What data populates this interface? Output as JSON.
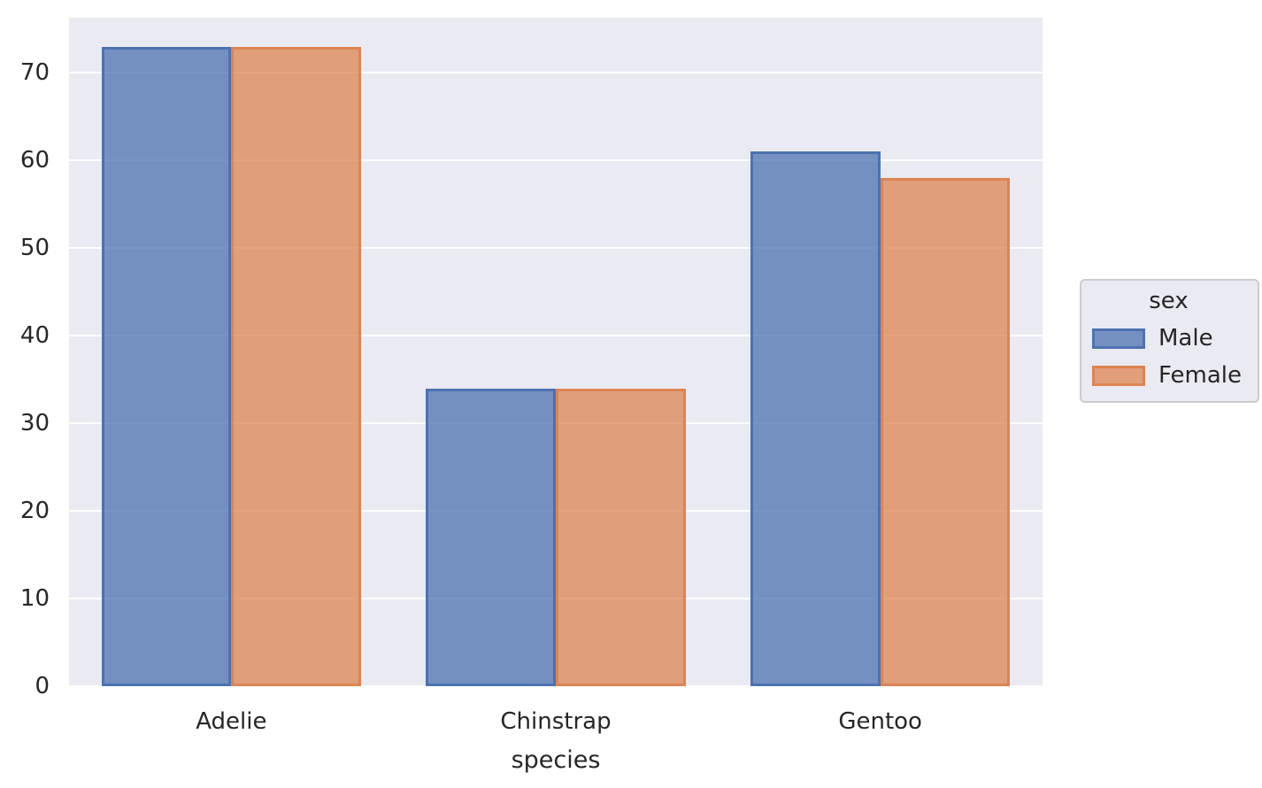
{
  "figure": {
    "background_color": "#ffffff",
    "axes_background_color": "#eaeaf2",
    "grid_color": "#ffffff",
    "text_color": "#262626"
  },
  "chart_data": {
    "type": "bar",
    "title": "",
    "xlabel": "species",
    "ylabel": "",
    "categories": [
      "Adelie",
      "Chinstrap",
      "Gentoo"
    ],
    "series": [
      {
        "name": "Male",
        "values": [
          73,
          34,
          61
        ],
        "fill": "rgba(76,114,176,0.75)",
        "edge": "#4C72B0"
      },
      {
        "name": "Female",
        "values": [
          73,
          34,
          58
        ],
        "fill": "rgba(221,132,82,0.75)",
        "edge": "#DD8452"
      }
    ],
    "y_ticks": [
      0,
      10,
      20,
      30,
      40,
      50,
      60,
      70
    ],
    "ylim": [
      0,
      76.3
    ],
    "grid": true,
    "legend": {
      "title": "sex",
      "position": "outside-right"
    }
  }
}
